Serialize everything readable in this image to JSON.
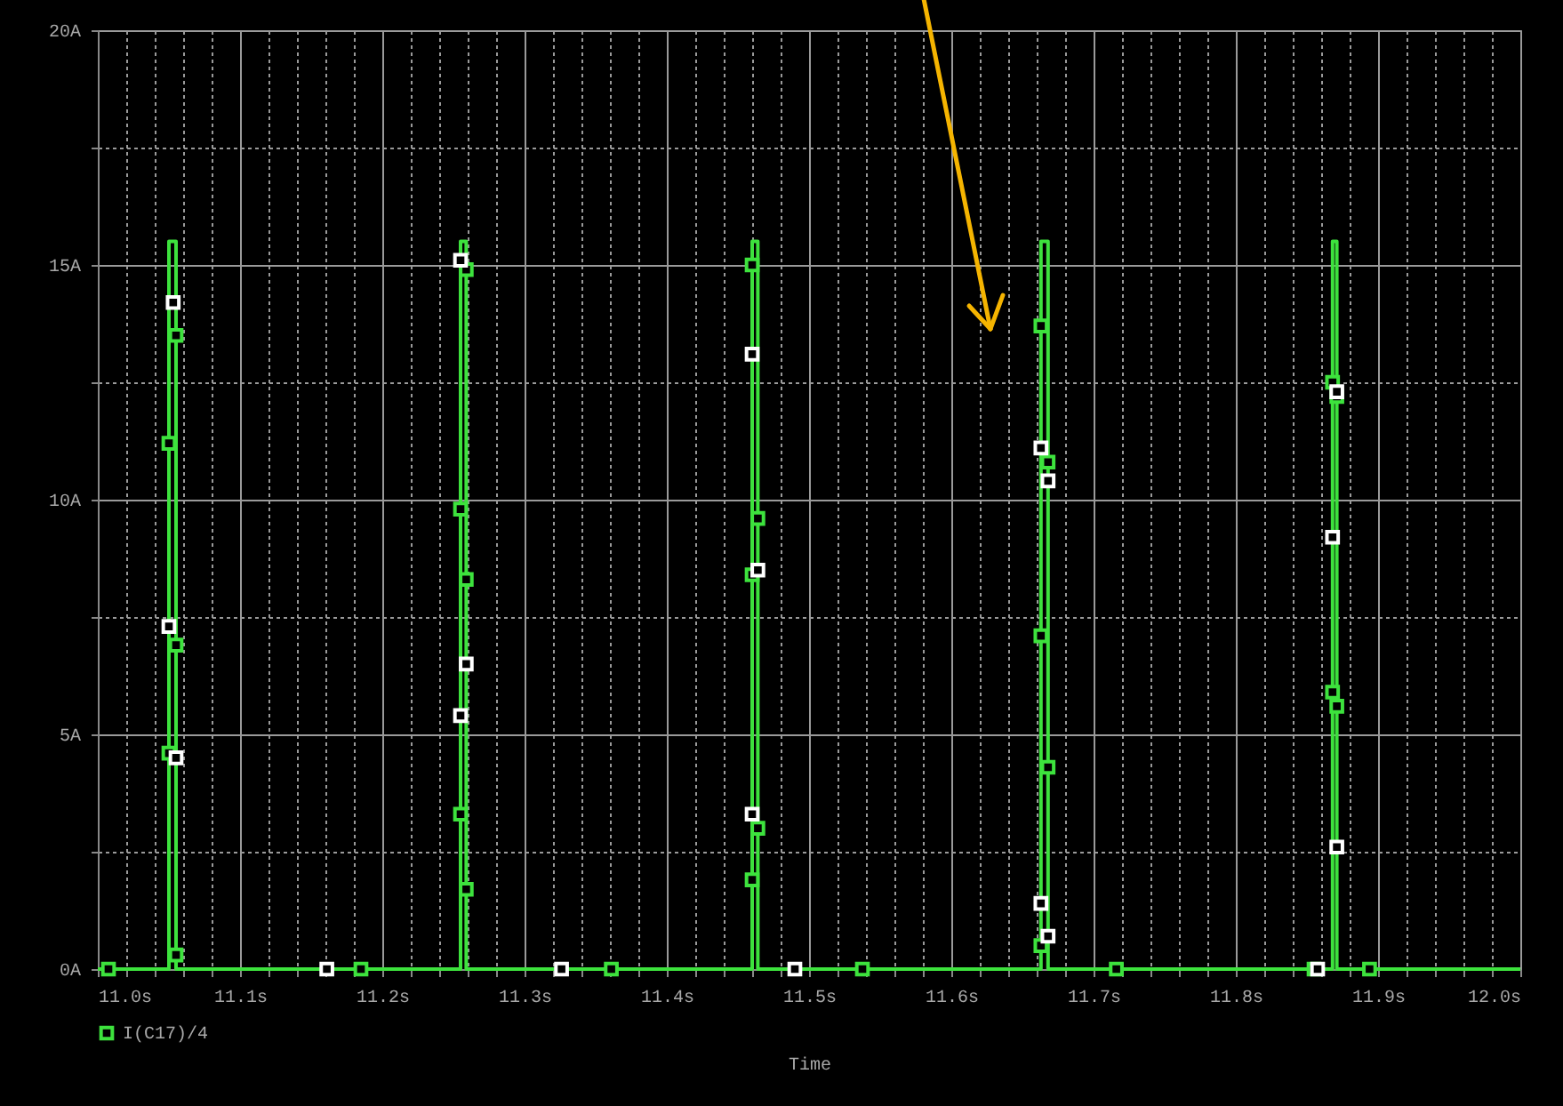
{
  "chart_data": {
    "type": "line",
    "xlabel": "Time",
    "xlim": [
      11.0,
      12.0
    ],
    "ylim": [
      0,
      20
    ],
    "xticks": [
      {
        "value": 11.0,
        "label": "11.0s"
      },
      {
        "value": 11.02,
        "label": null
      },
      {
        "value": 11.04,
        "label": null
      },
      {
        "value": 11.06,
        "label": null
      },
      {
        "value": 11.08,
        "label": null
      },
      {
        "value": 11.1,
        "label": "11.1s"
      },
      {
        "value": 11.12,
        "label": null
      },
      {
        "value": 11.14,
        "label": null
      },
      {
        "value": 11.16,
        "label": null
      },
      {
        "value": 11.18,
        "label": null
      },
      {
        "value": 11.2,
        "label": "11.2s"
      },
      {
        "value": 11.22,
        "label": null
      },
      {
        "value": 11.24,
        "label": null
      },
      {
        "value": 11.26,
        "label": null
      },
      {
        "value": 11.28,
        "label": null
      },
      {
        "value": 11.3,
        "label": "11.3s"
      },
      {
        "value": 11.32,
        "label": null
      },
      {
        "value": 11.34,
        "label": null
      },
      {
        "value": 11.36,
        "label": null
      },
      {
        "value": 11.38,
        "label": null
      },
      {
        "value": 11.4,
        "label": "11.4s"
      },
      {
        "value": 11.42,
        "label": null
      },
      {
        "value": 11.44,
        "label": null
      },
      {
        "value": 11.46,
        "label": null
      },
      {
        "value": 11.48,
        "label": null
      },
      {
        "value": 11.5,
        "label": "11.5s"
      },
      {
        "value": 11.52,
        "label": null
      },
      {
        "value": 11.54,
        "label": null
      },
      {
        "value": 11.56,
        "label": null
      },
      {
        "value": 11.58,
        "label": null
      },
      {
        "value": 11.6,
        "label": "11.6s"
      },
      {
        "value": 11.62,
        "label": null
      },
      {
        "value": 11.64,
        "label": null
      },
      {
        "value": 11.66,
        "label": null
      },
      {
        "value": 11.68,
        "label": null
      },
      {
        "value": 11.7,
        "label": "11.7s"
      },
      {
        "value": 11.72,
        "label": null
      },
      {
        "value": 11.74,
        "label": null
      },
      {
        "value": 11.76,
        "label": null
      },
      {
        "value": 11.78,
        "label": null
      },
      {
        "value": 11.8,
        "label": "11.8s"
      },
      {
        "value": 11.82,
        "label": null
      },
      {
        "value": 11.84,
        "label": null
      },
      {
        "value": 11.86,
        "label": null
      },
      {
        "value": 11.88,
        "label": null
      },
      {
        "value": 11.9,
        "label": "11.9s"
      },
      {
        "value": 11.92,
        "label": null
      },
      {
        "value": 11.94,
        "label": null
      },
      {
        "value": 11.96,
        "label": null
      },
      {
        "value": 11.98,
        "label": null
      },
      {
        "value": 12.0,
        "label": "12.0s"
      }
    ],
    "yticks": [
      {
        "value": 0,
        "label": "0A"
      },
      {
        "value": 2.5,
        "label": null
      },
      {
        "value": 5,
        "label": "5A"
      },
      {
        "value": 7.5,
        "label": null
      },
      {
        "value": 10,
        "label": "10A"
      },
      {
        "value": 12.5,
        "label": null
      },
      {
        "value": 15,
        "label": "15A"
      },
      {
        "value": 17.5,
        "label": null
      },
      {
        "value": 20,
        "label": "20A"
      }
    ],
    "grid": true,
    "legend": "bottom left",
    "series": [
      {
        "name": "I(C17)/4",
        "type": "line",
        "color": "#3de23d",
        "x": [
          11.0,
          11.05,
          11.05,
          11.055,
          11.055,
          11.255,
          11.255,
          11.259,
          11.259,
          11.46,
          11.46,
          11.464,
          11.464,
          11.663,
          11.663,
          11.668,
          11.668,
          11.868,
          11.868,
          11.871,
          11.871,
          12.0
        ],
        "values": [
          0,
          0,
          15.5,
          15.5,
          0,
          0,
          15.5,
          15.5,
          0,
          0,
          15.5,
          15.5,
          0,
          0,
          15.5,
          15.5,
          0,
          0,
          15.5,
          15.5,
          0,
          0
        ]
      },
      {
        "type": "scatter",
        "marker": "square",
        "color": "#3de23d",
        "x": [
          11.0075,
          11.185,
          11.361,
          11.5375,
          11.716,
          11.855,
          11.894,
          11.05,
          11.05,
          11.055,
          11.055,
          11.055,
          11.255,
          11.255,
          11.259,
          11.259,
          11.259,
          11.46,
          11.46,
          11.46,
          11.464,
          11.464,
          11.663,
          11.663,
          11.663,
          11.668,
          11.668,
          11.868,
          11.868,
          11.871,
          11.871
        ],
        "values": [
          0,
          0,
          0,
          0,
          0,
          0,
          0,
          11.2,
          4.6,
          13.5,
          6.9,
          0.3,
          9.8,
          3.3,
          14.9,
          8.3,
          1.7,
          15.0,
          8.4,
          1.9,
          9.6,
          3.0,
          13.7,
          7.1,
          0.5,
          10.8,
          4.3,
          12.5,
          5.9,
          12.2,
          5.6
        ]
      },
      {
        "type": "scatter",
        "marker": "square",
        "color": "#ffffff",
        "x": [
          11.053,
          11.05,
          11.055,
          11.255,
          11.259,
          11.255,
          11.46,
          11.464,
          11.46,
          11.663,
          11.668,
          11.663,
          11.668,
          11.871,
          11.868,
          11.871,
          11.161,
          11.326,
          11.49,
          11.8575
        ],
        "values": [
          14.2,
          7.3,
          4.5,
          15.1,
          6.5,
          5.4,
          13.1,
          8.5,
          3.3,
          11.1,
          10.4,
          1.4,
          0.7,
          12.3,
          9.2,
          2.6,
          0,
          0,
          0,
          0
        ]
      }
    ]
  }
}
